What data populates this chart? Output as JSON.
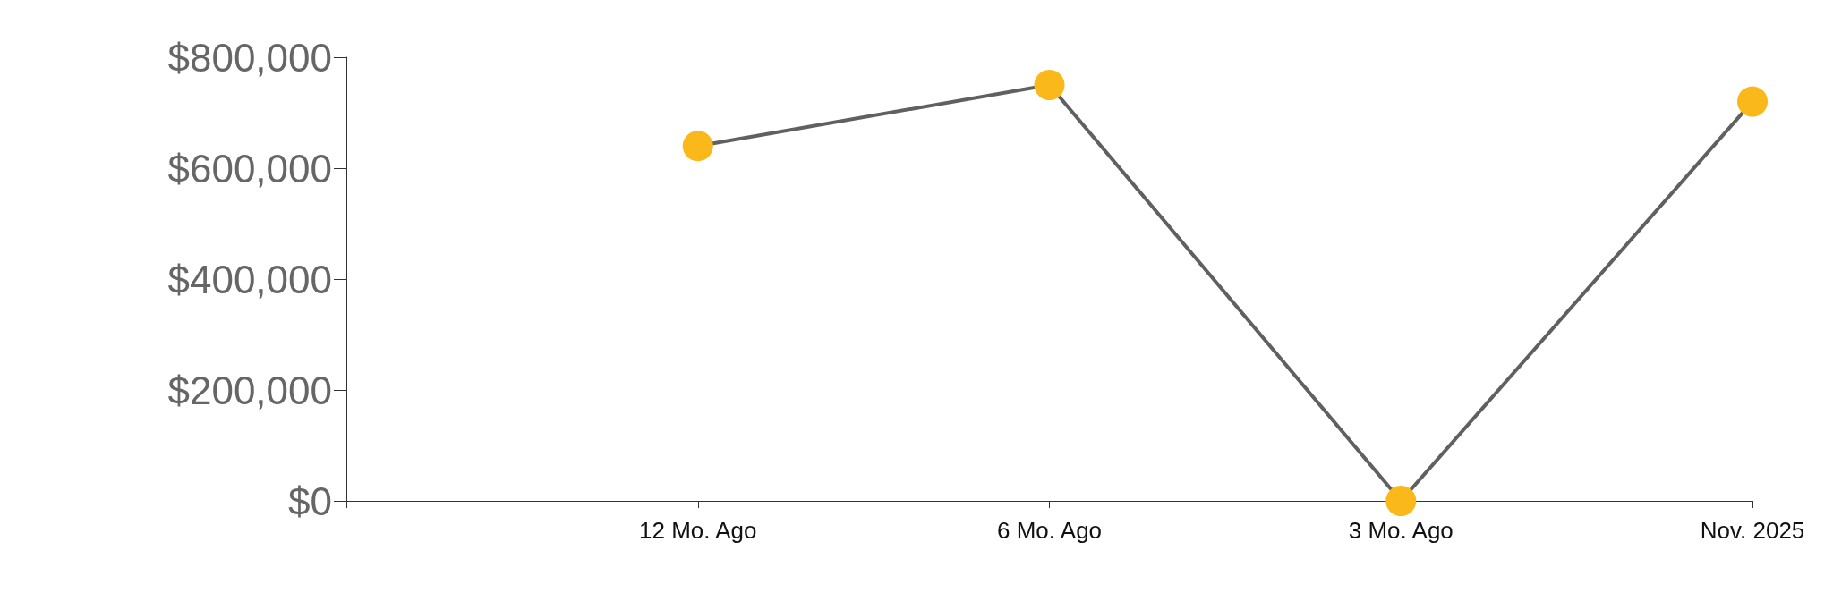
{
  "chart_data": {
    "type": "line",
    "categories": [
      null,
      "12 Mo. Ago",
      "6 Mo. Ago",
      "3 Mo. Ago",
      "Nov. 2025"
    ],
    "series": [
      {
        "color": "#fbb81a",
        "values": [
          null,
          640000,
          750000,
          0,
          720000
        ]
      }
    ],
    "ylim": [
      0,
      800000
    ],
    "yticks": [
      {
        "value": 0,
        "label": "$0"
      },
      {
        "value": 200000,
        "label": "$200,000"
      },
      {
        "value": 400000,
        "label": "$400,000"
      },
      {
        "value": 600000,
        "label": "$600,000"
      },
      {
        "value": 800000,
        "label": "$800,000"
      }
    ],
    "grid": false,
    "marker": "circle",
    "line_style": "solid"
  }
}
